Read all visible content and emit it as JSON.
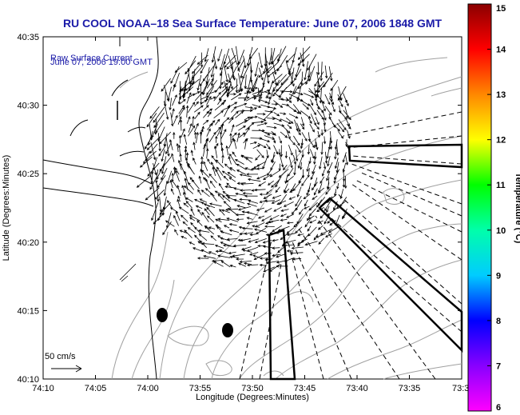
{
  "title": "RU COOL  NOAA–18  Sea Surface Temperature:  June 07, 2006 1848 GMT",
  "legend": {
    "line1": "Raw Surface Current",
    "line2": "June 07, 2006 19:00 GMT",
    "scale_label": "50 cm/s"
  },
  "axes": {
    "xlabel": "Longitude (Degrees:Minutes)",
    "ylabel": "Latitude (Degrees:Minutes)",
    "xticks": [
      "74:10",
      "74:05",
      "74:00",
      "73:55",
      "73:50",
      "73:45",
      "73:40",
      "73:35",
      "73:3"
    ],
    "yticks": [
      "40:10",
      "40:15",
      "40:20",
      "40:25",
      "40:30",
      "40:35"
    ]
  },
  "colorbar": {
    "label": "Temperature (°C)",
    "ticks": [
      "6",
      "7",
      "8",
      "9",
      "10",
      "11",
      "12",
      "13",
      "14",
      "15"
    ],
    "colors": [
      "#ff00ff",
      "#8800ff",
      "#0000ff",
      "#00ccff",
      "#00ffaa",
      "#00ff00",
      "#ffff00",
      "#ff8800",
      "#ff0000",
      "#8b0000"
    ]
  }
}
